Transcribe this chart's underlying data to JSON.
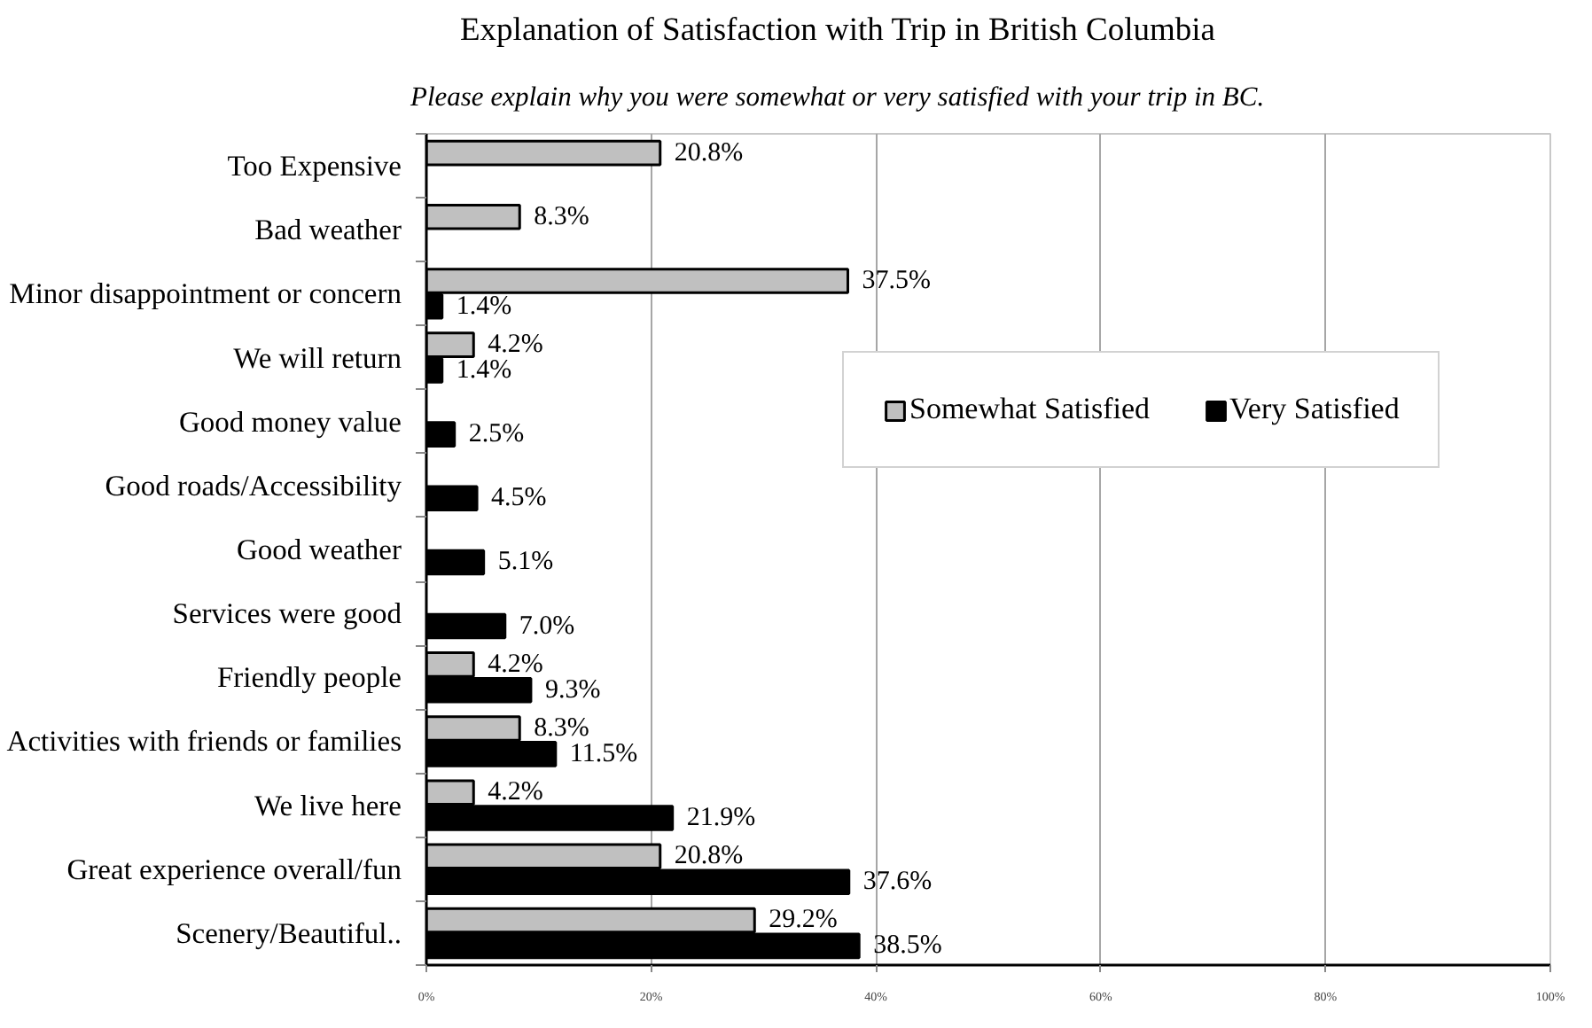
{
  "chart_data": {
    "type": "bar",
    "orientation": "horizontal",
    "title": "Explanation of Satisfaction with Trip in British Columbia",
    "subtitle": "Please explain why you were somewhat or very satisfied with your trip in BC.",
    "categories": [
      "Too Expensive",
      "Bad weather",
      "Minor disappointment or concern",
      "We will return",
      "Good money value",
      "Good roads/Accessibility",
      "Good weather",
      "Services were good",
      "Friendly people",
      "Activities with friends or families",
      "We live here",
      "Great experience overall/fun",
      "Scenery/Beautiful.."
    ],
    "series": [
      {
        "name": "Somewhat Satisfied",
        "color": "#c0c0c0",
        "values": [
          20.8,
          8.3,
          37.5,
          4.2,
          null,
          null,
          null,
          null,
          4.2,
          8.3,
          4.2,
          20.8,
          29.2
        ],
        "value_labels": [
          "20.8%",
          "8.3%",
          "37.5%",
          "4.2%",
          null,
          null,
          null,
          null,
          "4.2%",
          "8.3%",
          "4.2%",
          "20.8%",
          "29.2%"
        ]
      },
      {
        "name": "Very Satisfied",
        "color": "#000000",
        "values": [
          null,
          null,
          1.4,
          1.4,
          2.5,
          4.5,
          5.1,
          7.0,
          9.3,
          11.5,
          21.9,
          37.6,
          38.5
        ],
        "value_labels": [
          null,
          null,
          "1.4%",
          "1.4%",
          "2.5%",
          "4.5%",
          "5.1%",
          "7.0%",
          "9.3%",
          "11.5%",
          "21.9%",
          "37.6%",
          "38.5%"
        ]
      }
    ],
    "xlim": [
      0,
      100
    ],
    "xticks": [
      {
        "value": 0,
        "label": "0%"
      },
      {
        "value": 20,
        "label": "20%"
      },
      {
        "value": 40,
        "label": "40%"
      },
      {
        "value": 60,
        "label": "60%"
      },
      {
        "value": 80,
        "label": "80%"
      },
      {
        "value": 100,
        "label": "100%"
      }
    ],
    "grid": "x",
    "legend": "right"
  }
}
